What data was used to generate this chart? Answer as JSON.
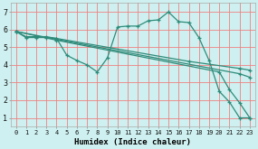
{
  "xlabel": "Humidex (Indice chaleur)",
  "bg_color": "#cff0f0",
  "grid_color": "#f08080",
  "line_color": "#2e8b7a",
  "xlim": [
    -0.5,
    23.5
  ],
  "ylim": [
    0.5,
    7.5
  ],
  "xticks": [
    0,
    1,
    2,
    3,
    4,
    5,
    6,
    7,
    8,
    9,
    10,
    11,
    12,
    13,
    14,
    15,
    16,
    17,
    18,
    19,
    20,
    21,
    22,
    23
  ],
  "yticks": [
    1,
    2,
    3,
    4,
    5,
    6,
    7
  ],
  "lines": [
    {
      "x": [
        0,
        1,
        2,
        3,
        4,
        5,
        6,
        7,
        8,
        9,
        10,
        11,
        12,
        13,
        14,
        15,
        16,
        17,
        18,
        19,
        20,
        21,
        22,
        23
      ],
      "y": [
        5.9,
        5.6,
        5.6,
        5.6,
        5.5,
        4.55,
        4.25,
        4.0,
        3.6,
        4.4,
        6.15,
        6.2,
        6.2,
        6.5,
        6.55,
        7.0,
        6.45,
        6.4,
        5.55,
        4.25,
        2.5,
        1.9,
        1.0,
        1.0
      ]
    },
    {
      "x": [
        0,
        1,
        2,
        3,
        4,
        17,
        22,
        23
      ],
      "y": [
        5.9,
        5.55,
        5.55,
        5.55,
        5.5,
        4.2,
        3.8,
        3.7
      ]
    },
    {
      "x": [
        0,
        4,
        22,
        23
      ],
      "y": [
        5.9,
        5.45,
        3.5,
        3.3
      ]
    },
    {
      "x": [
        0,
        4,
        20,
        21,
        22,
        23
      ],
      "y": [
        5.9,
        5.4,
        3.6,
        2.6,
        1.85,
        1.0
      ]
    }
  ]
}
